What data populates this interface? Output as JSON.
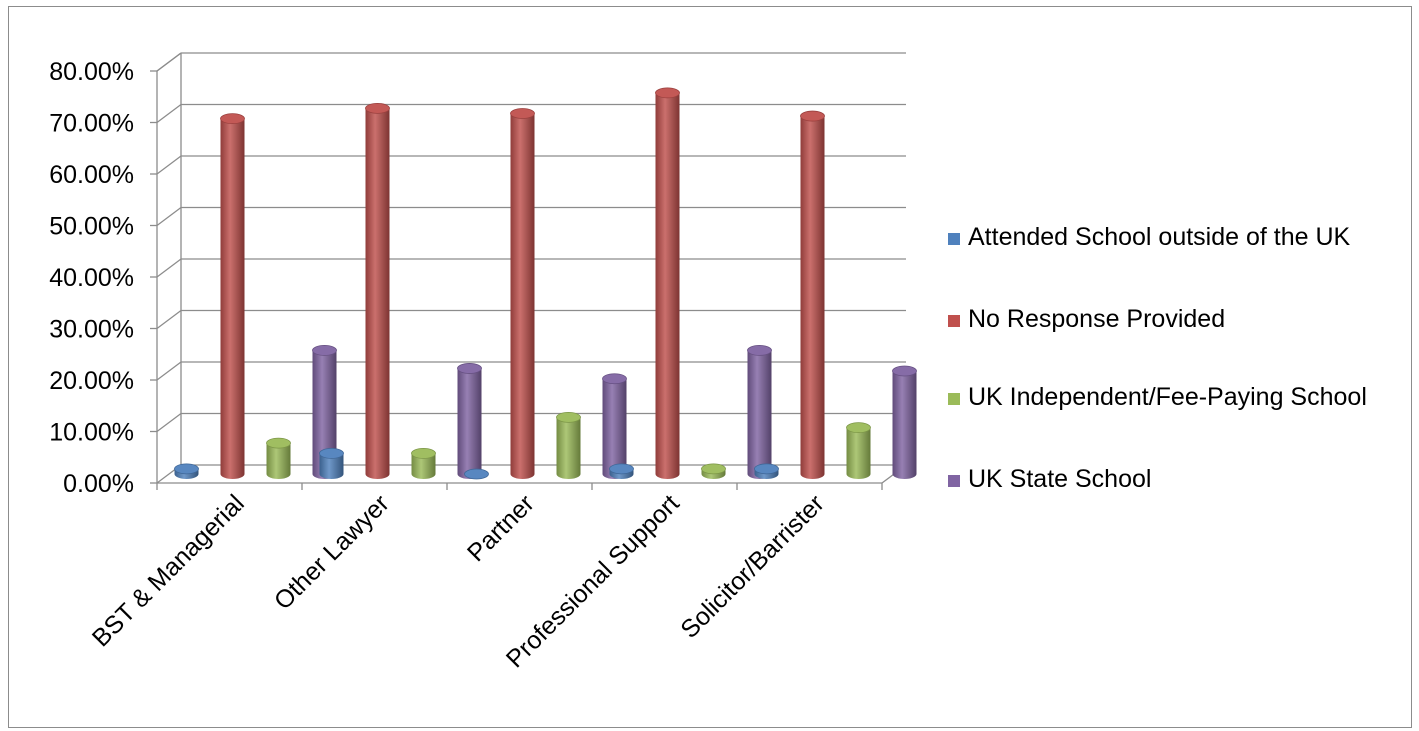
{
  "chart_data": {
    "type": "bar",
    "title": "",
    "xlabel": "",
    "ylabel": "",
    "categories": [
      "BST & Managerial",
      "Other Lawyer",
      "Partner",
      "Professional Support",
      "Solicitor/Barrister"
    ],
    "series": [
      {
        "name": "Attended School outside of the UK",
        "color": "#4f81bd",
        "values": [
          0.01,
          0.04,
          0.0,
          0.01,
          0.01
        ]
      },
      {
        "name": "No Response Provided",
        "color": "#c0504d",
        "values": [
          0.69,
          0.71,
          0.7,
          0.74,
          0.695
        ]
      },
      {
        "name": "UK Independent/Fee-Paying School",
        "color": "#9bbb59",
        "values": [
          0.06,
          0.04,
          0.11,
          0.01,
          0.09
        ]
      },
      {
        "name": "UK State School",
        "color": "#8064a2",
        "values": [
          0.24,
          0.205,
          0.185,
          0.24,
          0.2
        ]
      }
    ],
    "ylim": [
      0,
      0.8
    ],
    "yticks": [
      "0.00%",
      "10.00%",
      "20.00%",
      "30.00%",
      "40.00%",
      "50.00%",
      "60.00%",
      "70.00%",
      "80.00%"
    ],
    "grid": true,
    "style": "3d-cylinder",
    "legend_position": "right"
  }
}
